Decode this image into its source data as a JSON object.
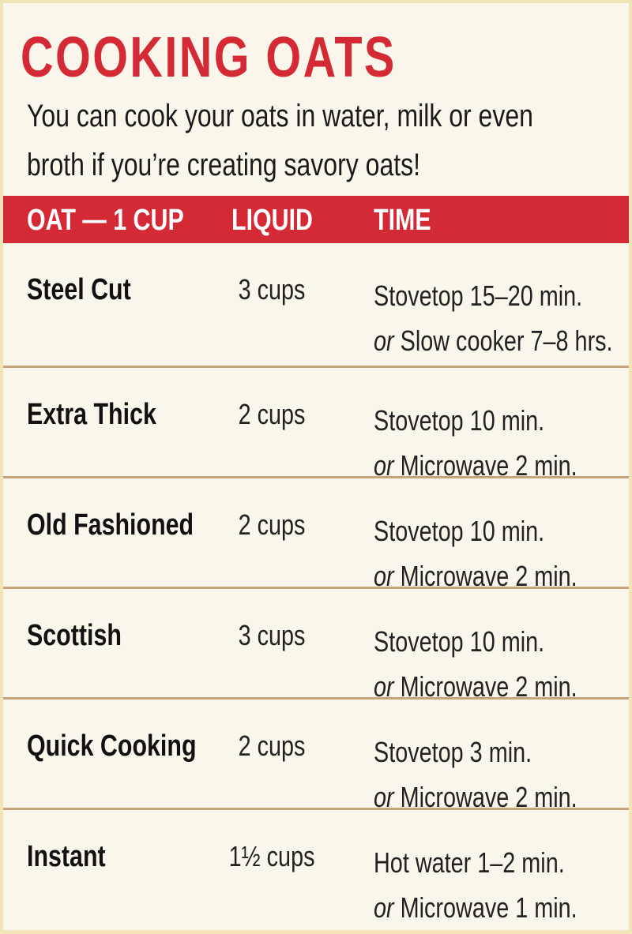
{
  "title": "COOKING OATS",
  "intro": [
    "You can cook your oats in water, milk or even",
    "broth if you’re creating savory oats!"
  ],
  "header": {
    "oat": "OAT — 1 CUP",
    "liquid": "LIQUID",
    "time": "TIME"
  },
  "colors": {
    "accent": "#d42a36",
    "background": "#fbf6ec",
    "border": "#f1e4b8",
    "divider": "#c9a57a"
  },
  "rows": [
    {
      "oat": "Steel Cut",
      "liquid": "3 cups",
      "time1": "Stovetop 15–20 min.",
      "or": "or",
      "time2": "Slow cooker 7–8 hrs."
    },
    {
      "oat": "Extra Thick",
      "liquid": "2 cups",
      "time1": "Stovetop 10 min.",
      "or": "or",
      "time2": "Microwave 2 min."
    },
    {
      "oat": "Old Fashioned",
      "liquid": "2 cups",
      "time1": "Stovetop 10 min.",
      "or": "or",
      "time2": "Microwave 2 min."
    },
    {
      "oat": "Scottish",
      "liquid": "3 cups",
      "time1": "Stovetop 10 min.",
      "or": "or",
      "time2": "Microwave 2 min."
    },
    {
      "oat": "Quick Cooking",
      "liquid": "2 cups",
      "time1": "Stovetop 3 min.",
      "or": "or",
      "time2": "Microwave 2 min."
    },
    {
      "oat": "Instant",
      "liquid": "1½ cups",
      "time1": "Hot water 1–2 min.",
      "or": "or",
      "time2": "Microwave 1 min."
    }
  ]
}
